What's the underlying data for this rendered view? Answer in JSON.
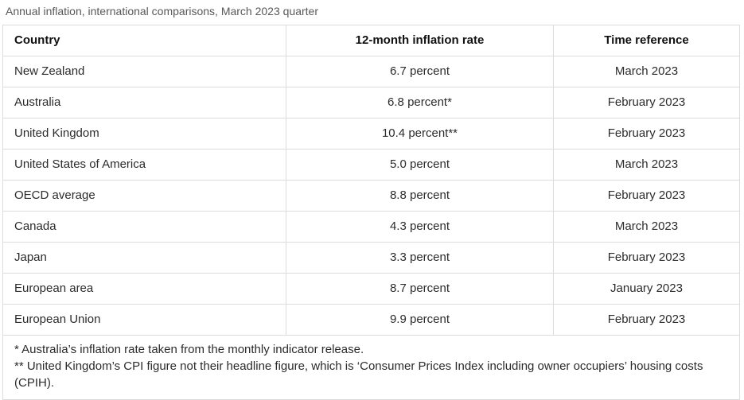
{
  "page": {
    "title": "Annual inflation, international comparisons, March 2023 quarter"
  },
  "table": {
    "columns": {
      "country": "Country",
      "rate": "12-month inflation rate",
      "time": "Time reference"
    },
    "rows": [
      {
        "country": "New Zealand",
        "rate": "6.7 percent",
        "time": "March 2023"
      },
      {
        "country": "Australia",
        "rate": "6.8 percent*",
        "time": "February 2023"
      },
      {
        "country": "United Kingdom",
        "rate": "10.4 percent**",
        "time": "February 2023"
      },
      {
        "country": "United States of America",
        "rate": "5.0 percent",
        "time": "March 2023"
      },
      {
        "country": "OECD average",
        "rate": "8.8 percent",
        "time": "February 2023"
      },
      {
        "country": "Canada",
        "rate": "4.3 percent",
        "time": "March 2023"
      },
      {
        "country": "Japan",
        "rate": "3.3 percent",
        "time": "February 2023"
      },
      {
        "country": "European area",
        "rate": "8.7 percent",
        "time": "January 2023"
      },
      {
        "country": "European Union",
        "rate": "9.9 percent",
        "time": "February 2023"
      }
    ],
    "footnotes": [
      "* Australia’s inflation rate taken from the monthly indicator release.",
      "** United Kingdom’s CPI figure not their headline figure, which is ‘Consumer Prices Index including owner occupiers’ housing costs (CPIH)."
    ]
  },
  "colors": {
    "border": "#dcdcdc",
    "title_text": "#58585b",
    "body_text": "#2b2b2b",
    "header_text": "#111111"
  }
}
